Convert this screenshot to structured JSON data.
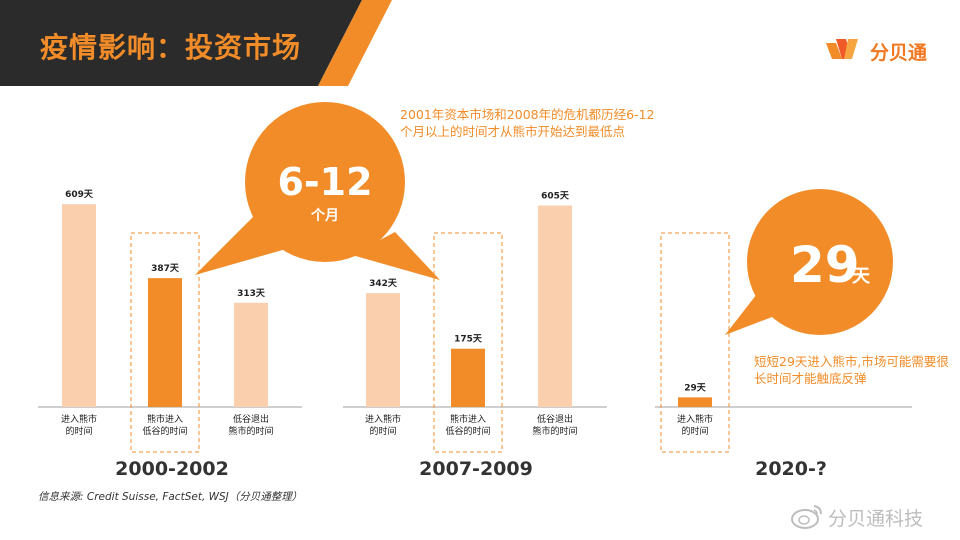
{
  "title": "疫情影响：投资市场",
  "logo": {
    "text": "分贝通",
    "icon": "logo-mark-icon"
  },
  "notes": {
    "top": "2001年资本市场和2008年的危机都历经6-12个月以上的时间才从熊市开始达到最低点",
    "right": "短短29天进入熊市,市场可能需要很长时间才能触底反弹"
  },
  "bubbles": [
    {
      "main": "6-12",
      "sub": "个月"
    },
    {
      "main": "29",
      "sub": "天"
    }
  ],
  "source": "信息来源: Credit Suisse, FactSet, WSJ（分贝通整理）",
  "watermark": "分贝通科技",
  "colors": {
    "light_bar": "#f9cfad",
    "dark_bar": "#f28c28",
    "accent": "#f28c28",
    "header": "#2b2b2b"
  },
  "chart_data": {
    "type": "bar",
    "unit": "天",
    "groups": [
      {
        "period": "2000-2002",
        "categories": [
          "进入熊市的时间",
          "熊市进入低谷的时间",
          "低谷退出熊市的时间"
        ],
        "values": [
          609,
          387,
          313
        ],
        "value_labels": [
          "609天",
          "387天",
          "313天"
        ],
        "highlight": 1
      },
      {
        "period": "2007-2009",
        "categories": [
          "进入熊市的时间",
          "熊市进入低谷的时间",
          "低谷退出熊市的时间"
        ],
        "values": [
          342,
          175,
          605
        ],
        "value_labels": [
          "342天",
          "175天",
          "605天"
        ],
        "highlight": 1
      },
      {
        "period": "2020-?",
        "categories": [
          "进入熊市的时间"
        ],
        "values": [
          29
        ],
        "value_labels": [
          "29天"
        ],
        "highlight": 0
      }
    ]
  }
}
